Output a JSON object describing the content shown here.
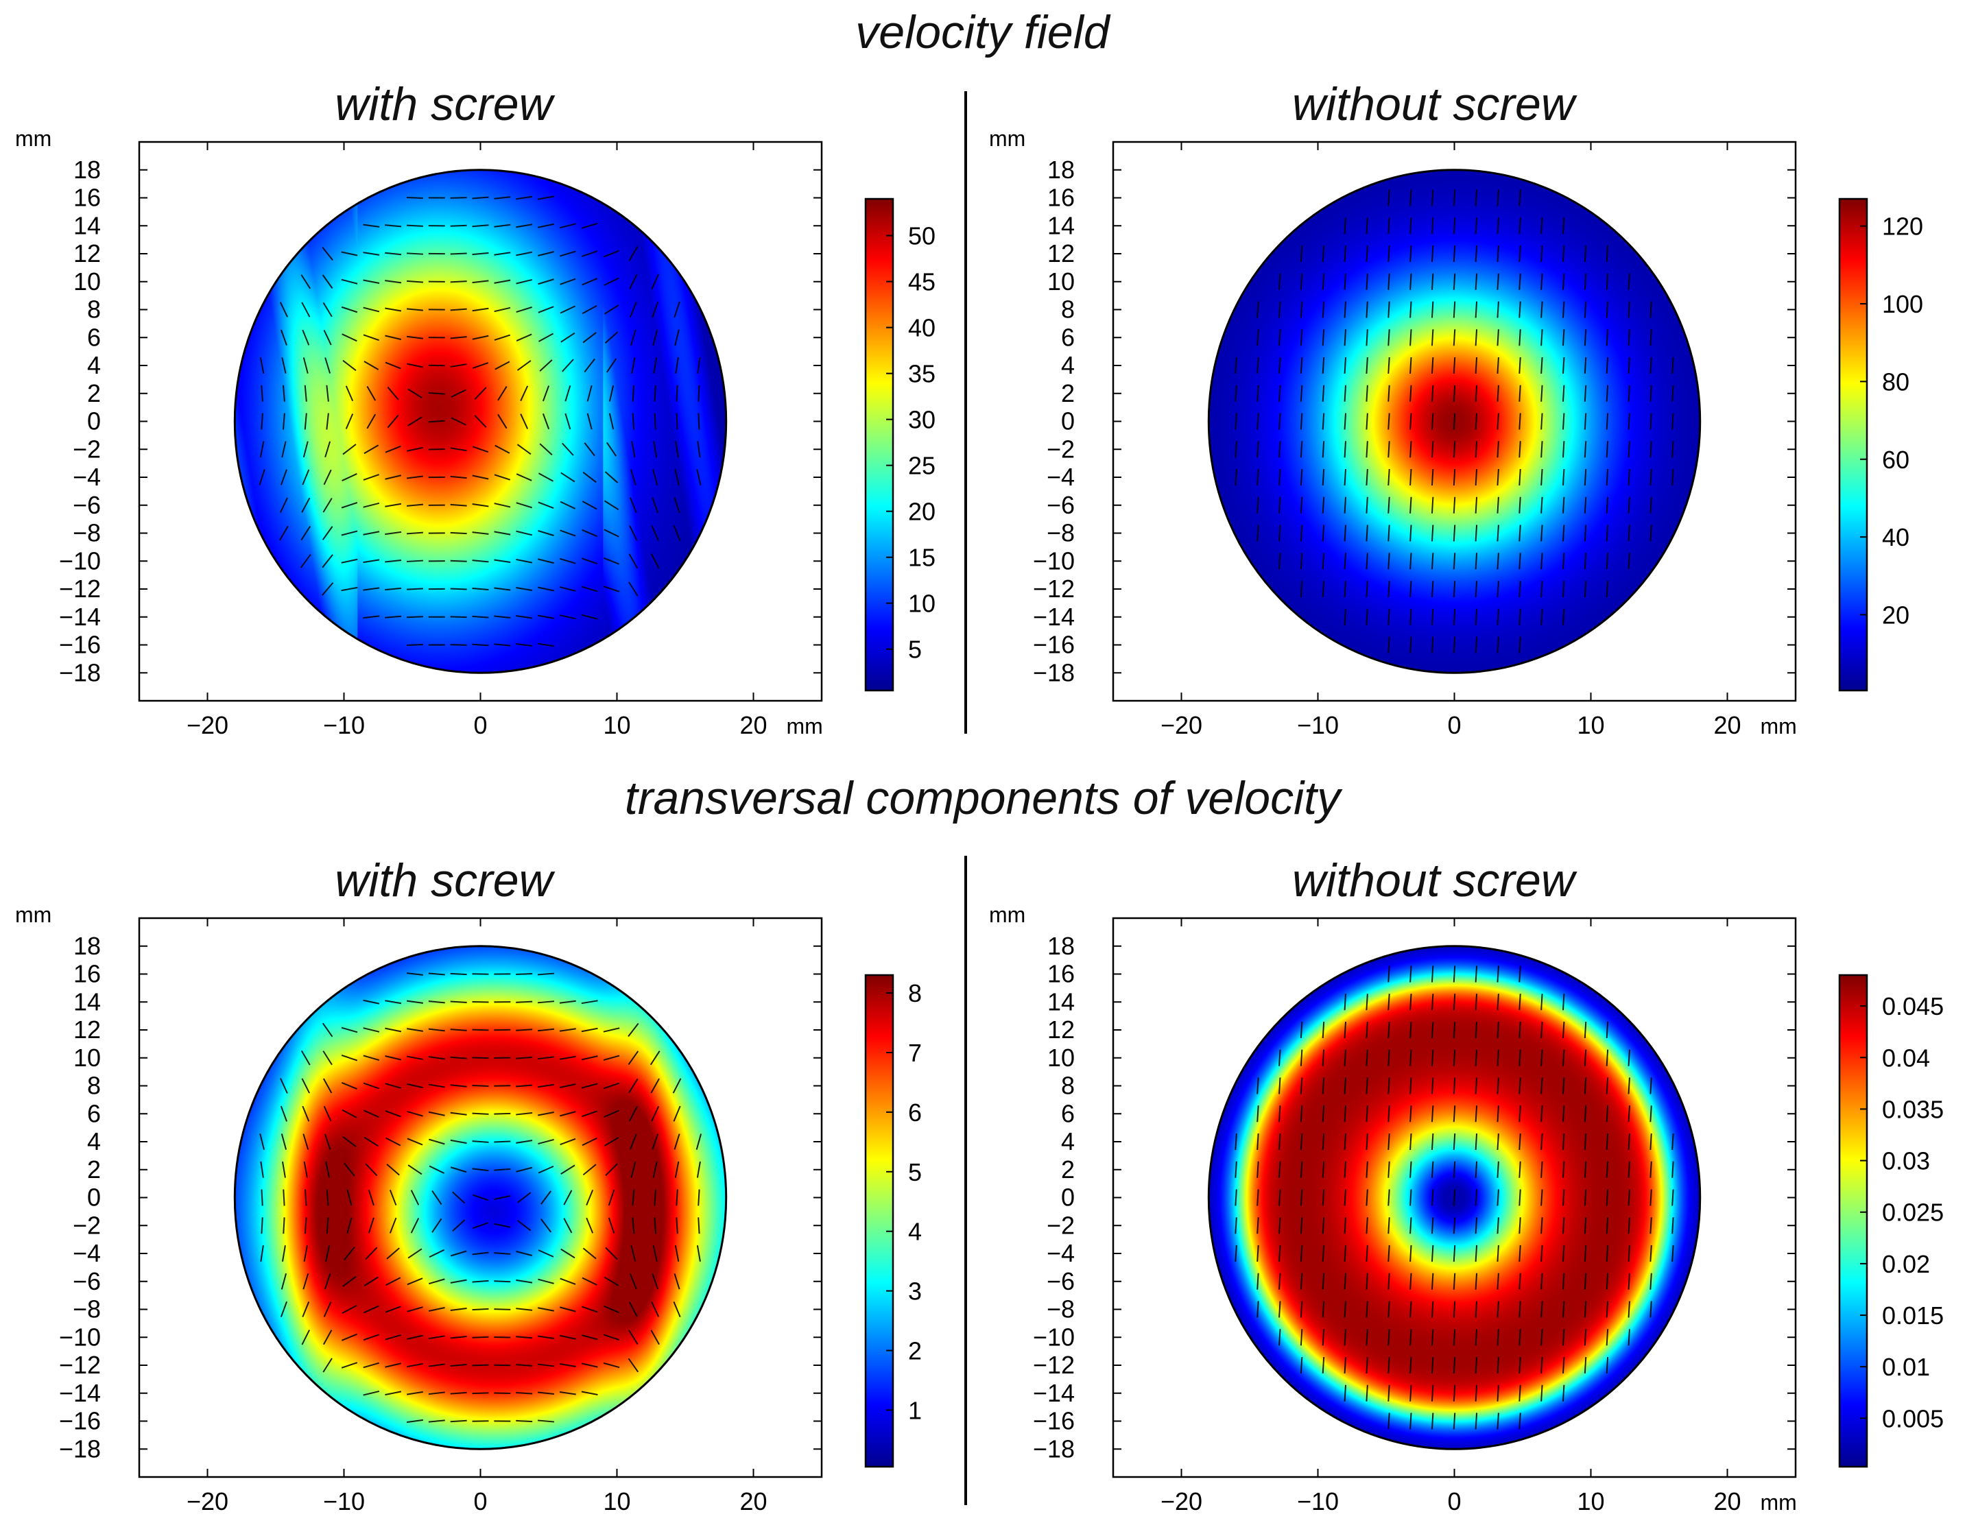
{
  "titles": {
    "top": "velocity field",
    "bottom": "transversal components of velocity",
    "with": "with screw",
    "without": "without screw"
  },
  "colormap": [
    "#00008f",
    "#0000ff",
    "#0080ff",
    "#00ffff",
    "#80ff80",
    "#ffff00",
    "#ff8000",
    "#ff0000",
    "#800000"
  ],
  "chart_data": [
    {
      "type": "heatmap",
      "title": "velocity field — with screw",
      "xlabel": "mm",
      "ylabel": "mm",
      "xlim": [
        -25,
        25
      ],
      "ylim": [
        -20,
        20
      ],
      "xticks": [
        -20,
        -10,
        0,
        10,
        20
      ],
      "yticks": [
        18,
        16,
        14,
        12,
        10,
        8,
        6,
        4,
        2,
        0,
        -2,
        -4,
        -6,
        -8,
        -10,
        -12,
        -14,
        -16,
        -18
      ],
      "domain_radius": 18,
      "peak_center": [
        -3,
        1
      ],
      "colorbar": {
        "min": 0.5,
        "max": 54,
        "ticks": [
          5,
          10,
          15,
          20,
          25,
          30,
          35,
          40,
          45,
          50
        ]
      },
      "pattern": "central-peak-swirl",
      "arrows": "swirl"
    },
    {
      "type": "heatmap",
      "title": "velocity field — without screw",
      "xlabel": "mm",
      "ylabel": "mm",
      "xlim": [
        -25,
        25
      ],
      "ylim": [
        -20,
        20
      ],
      "xticks": [
        -20,
        -10,
        0,
        10,
        20
      ],
      "yticks": [
        18,
        16,
        14,
        12,
        10,
        8,
        6,
        4,
        2,
        0,
        -2,
        -4,
        -6,
        -8,
        -10,
        -12,
        -14,
        -16,
        -18
      ],
      "domain_radius": 18,
      "peak_center": [
        0,
        0
      ],
      "colorbar": {
        "min": 0.5,
        "max": 127,
        "ticks": [
          20,
          40,
          60,
          80,
          100,
          120
        ]
      },
      "pattern": "central-peak",
      "arrows": "vertical"
    },
    {
      "type": "heatmap",
      "title": "transversal components of velocity — with screw",
      "xlabel": "",
      "ylabel": "mm",
      "xlim": [
        -25,
        25
      ],
      "ylim": [
        -20,
        20
      ],
      "xticks": [
        -20,
        -10,
        0,
        10,
        20
      ],
      "yticks": [
        18,
        16,
        14,
        12,
        10,
        8,
        6,
        4,
        2,
        0,
        -2,
        -4,
        -6,
        -8,
        -10,
        -12,
        -14,
        -16,
        -18
      ],
      "domain_radius": 18,
      "peak_center": [
        1,
        -1
      ],
      "colorbar": {
        "min": 0.05,
        "max": 8.3,
        "ticks": [
          1,
          2,
          3,
          4,
          5,
          6,
          7,
          8
        ]
      },
      "pattern": "ring-swirl",
      "arrows": "swirl"
    },
    {
      "type": "heatmap",
      "title": "transversal components of velocity — without screw",
      "xlabel": "mm",
      "ylabel": "mm",
      "xlim": [
        -25,
        25
      ],
      "ylim": [
        -20,
        20
      ],
      "xticks": [
        -20,
        -10,
        0,
        10,
        20
      ],
      "yticks": [
        18,
        16,
        14,
        12,
        10,
        8,
        6,
        4,
        2,
        0,
        -2,
        -4,
        -6,
        -8,
        -10,
        -12,
        -14,
        -16,
        -18
      ],
      "domain_radius": 18,
      "peak_center": [
        0,
        0
      ],
      "colorbar": {
        "min": 0.0003,
        "max": 0.048,
        "ticks": [
          0.005,
          0.01,
          0.015,
          0.02,
          0.025,
          0.03,
          0.035,
          0.04,
          0.045
        ]
      },
      "pattern": "ring",
      "arrows": "vertical"
    }
  ]
}
